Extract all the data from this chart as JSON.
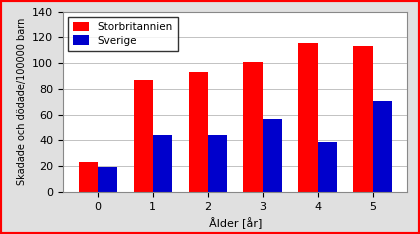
{
  "categories": [
    0,
    1,
    2,
    3,
    4,
    5
  ],
  "storbritannien": [
    23,
    87,
    93,
    101,
    116,
    113
  ],
  "sverige": [
    19,
    44,
    44,
    57,
    39,
    71
  ],
  "bar_color_stor": "#FF0000",
  "bar_color_sver": "#0000CC",
  "xlabel": "Ålder [år]",
  "ylabel": "Skadade och dödade/100000 barn",
  "ylim": [
    0,
    140
  ],
  "yticks": [
    0,
    20,
    40,
    60,
    80,
    100,
    120,
    140
  ],
  "legend_stor": "Storbritannien",
  "legend_sver": "Sverige",
  "plot_bg_color": "#FFFFFF",
  "fig_bg_color": "#E0E0E0",
  "grid_color": "#AAAAAA"
}
